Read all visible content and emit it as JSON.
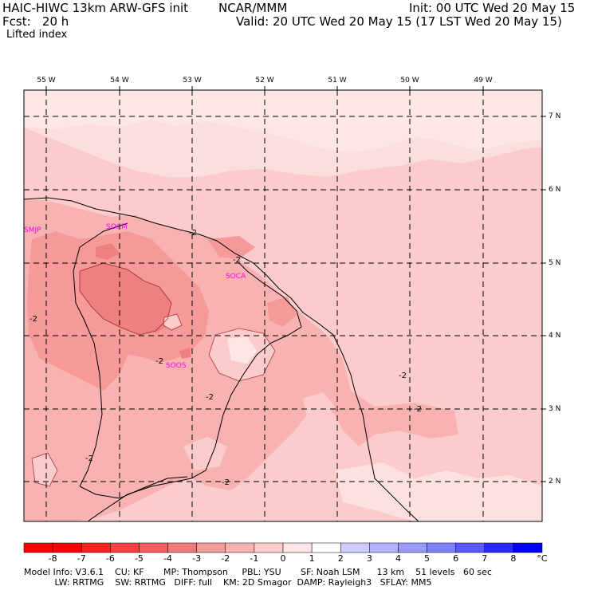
{
  "header": {
    "model_title": "HAIC-HIWC 13km ARW-GFS init",
    "org": "NCAR/MMM",
    "init": "Init: 00 UTC Wed 20 May 15",
    "fcst": "Fcst:   20 h",
    "valid": "Valid: 20 UTC Wed 20 May 15 (17 LST Wed 20 May 15)",
    "field": "Lifted index"
  },
  "map": {
    "longitude_labels": [
      "55 W",
      "54 W",
      "53 W",
      "52 W",
      "51 W",
      "50 W",
      "49 W"
    ],
    "latitude_labels": [
      "7 N",
      "6 N",
      "5 N",
      "4 N",
      "3 N",
      "2 N"
    ],
    "stations": [
      "SMJP",
      "SOCM",
      "SOCA",
      "SOOS"
    ],
    "contour_labels": [
      "-2",
      "-2",
      "-2",
      "-2",
      "-2",
      "-2",
      "-2",
      "-2",
      "-2"
    ],
    "colors": {
      "ocean_light": "#fde6e6",
      "level_m1": "#fccccc",
      "level_m2": "#f9b2b2",
      "level_m3": "#f59999",
      "level_m4": "#ef8080",
      "coast": "#000000",
      "grid": "#000000"
    }
  },
  "colorbar": {
    "ticks": [
      "-8",
      "-7",
      "-6",
      "-5",
      "-4",
      "-3",
      "-2",
      "-1",
      "0",
      "1",
      "2",
      "3",
      "4",
      "5",
      "6",
      "7",
      "8"
    ],
    "unit": "°C",
    "colors": [
      "#ff0000",
      "#ff2020",
      "#fa4040",
      "#f55f5f",
      "#f07a7a",
      "#f59999",
      "#f9b2b2",
      "#fccccc",
      "#fde6e6",
      "#ffffff",
      "#ccccff",
      "#b2b2ff",
      "#9999ff",
      "#7f7fff",
      "#5959ff",
      "#2a2aff",
      "#0000ff"
    ]
  },
  "footer": {
    "line1": "Model Info: V3.6.1    CU: KF       MP: Thompson     PBL: YSU       SF: Noah LSM      13 km    51 levels   60 sec",
    "line2": "           LW: RRTMG    SW: RRTMG   DIFF: full    KM: 2D Smagor  DAMP: Rayleigh3   SFLAY: MM5"
  }
}
